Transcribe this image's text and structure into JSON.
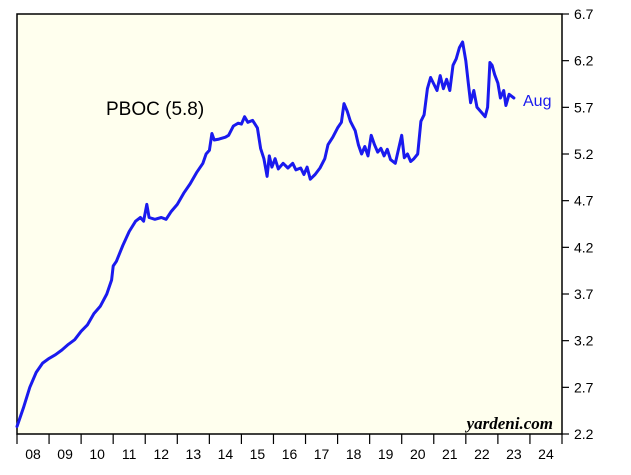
{
  "colors": {
    "plot_background": "#ffffee",
    "series": "#1a1aee",
    "axis": "#000000"
  },
  "chart_data": {
    "type": "line",
    "x_range": [
      2008,
      2025
    ],
    "ylim": [
      2.2,
      6.7
    ],
    "y_ticks": [
      "6.7",
      "6.2",
      "5.7",
      "5.2",
      "4.7",
      "4.2",
      "3.7",
      "3.2",
      "2.7",
      "2.2"
    ],
    "x_ticks": [
      "08",
      "09",
      "10",
      "11",
      "12",
      "13",
      "14",
      "15",
      "16",
      "17",
      "18",
      "19",
      "20",
      "21",
      "22",
      "23",
      "24"
    ],
    "grid": false,
    "annotation": "PBOC (5.8)",
    "end_label": "Aug",
    "source": "yardeni.com",
    "series": [
      {
        "points": [
          [
            2008.0,
            2.28
          ],
          [
            2008.2,
            2.48
          ],
          [
            2008.4,
            2.7
          ],
          [
            2008.6,
            2.86
          ],
          [
            2008.8,
            2.96
          ],
          [
            2009.0,
            3.01
          ],
          [
            2009.2,
            3.05
          ],
          [
            2009.4,
            3.1
          ],
          [
            2009.6,
            3.16
          ],
          [
            2009.8,
            3.21
          ],
          [
            2010.0,
            3.3
          ],
          [
            2010.2,
            3.37
          ],
          [
            2010.4,
            3.49
          ],
          [
            2010.6,
            3.57
          ],
          [
            2010.8,
            3.7
          ],
          [
            2010.95,
            3.85
          ],
          [
            2011.0,
            4.0
          ],
          [
            2011.1,
            4.05
          ],
          [
            2011.3,
            4.22
          ],
          [
            2011.5,
            4.37
          ],
          [
            2011.7,
            4.48
          ],
          [
            2011.85,
            4.52
          ],
          [
            2011.95,
            4.48
          ],
          [
            2012.05,
            4.66
          ],
          [
            2012.12,
            4.52
          ],
          [
            2012.3,
            4.5
          ],
          [
            2012.5,
            4.52
          ],
          [
            2012.65,
            4.5
          ],
          [
            2012.8,
            4.58
          ],
          [
            2013.0,
            4.66
          ],
          [
            2013.2,
            4.78
          ],
          [
            2013.4,
            4.88
          ],
          [
            2013.6,
            5.0
          ],
          [
            2013.8,
            5.1
          ],
          [
            2013.9,
            5.2
          ],
          [
            2014.0,
            5.24
          ],
          [
            2014.08,
            5.42
          ],
          [
            2014.15,
            5.35
          ],
          [
            2014.3,
            5.36
          ],
          [
            2014.5,
            5.38
          ],
          [
            2014.6,
            5.4
          ],
          [
            2014.75,
            5.5
          ],
          [
            2014.9,
            5.53
          ],
          [
            2015.0,
            5.52
          ],
          [
            2015.1,
            5.6
          ],
          [
            2015.2,
            5.54
          ],
          [
            2015.35,
            5.56
          ],
          [
            2015.5,
            5.48
          ],
          [
            2015.6,
            5.26
          ],
          [
            2015.7,
            5.15
          ],
          [
            2015.8,
            4.96
          ],
          [
            2015.87,
            5.18
          ],
          [
            2015.95,
            5.06
          ],
          [
            2016.05,
            5.15
          ],
          [
            2016.15,
            5.04
          ],
          [
            2016.3,
            5.1
          ],
          [
            2016.45,
            5.05
          ],
          [
            2016.6,
            5.1
          ],
          [
            2016.7,
            5.03
          ],
          [
            2016.85,
            5.05
          ],
          [
            2016.95,
            4.98
          ],
          [
            2017.05,
            5.06
          ],
          [
            2017.15,
            4.93
          ],
          [
            2017.3,
            4.98
          ],
          [
            2017.45,
            5.05
          ],
          [
            2017.6,
            5.15
          ],
          [
            2017.7,
            5.3
          ],
          [
            2017.85,
            5.38
          ],
          [
            2018.0,
            5.48
          ],
          [
            2018.12,
            5.54
          ],
          [
            2018.2,
            5.74
          ],
          [
            2018.3,
            5.66
          ],
          [
            2018.4,
            5.55
          ],
          [
            2018.55,
            5.45
          ],
          [
            2018.65,
            5.3
          ],
          [
            2018.75,
            5.2
          ],
          [
            2018.85,
            5.28
          ],
          [
            2018.95,
            5.18
          ],
          [
            2019.05,
            5.4
          ],
          [
            2019.15,
            5.3
          ],
          [
            2019.25,
            5.22
          ],
          [
            2019.35,
            5.26
          ],
          [
            2019.45,
            5.18
          ],
          [
            2019.55,
            5.25
          ],
          [
            2019.65,
            5.14
          ],
          [
            2019.8,
            5.1
          ],
          [
            2019.9,
            5.25
          ],
          [
            2020.0,
            5.4
          ],
          [
            2020.08,
            5.16
          ],
          [
            2020.18,
            5.2
          ],
          [
            2020.28,
            5.12
          ],
          [
            2020.38,
            5.15
          ],
          [
            2020.5,
            5.2
          ],
          [
            2020.6,
            5.55
          ],
          [
            2020.7,
            5.62
          ],
          [
            2020.8,
            5.9
          ],
          [
            2020.9,
            6.02
          ],
          [
            2021.0,
            5.95
          ],
          [
            2021.1,
            5.88
          ],
          [
            2021.2,
            6.04
          ],
          [
            2021.3,
            5.9
          ],
          [
            2021.4,
            6.0
          ],
          [
            2021.5,
            5.88
          ],
          [
            2021.6,
            6.15
          ],
          [
            2021.7,
            6.22
          ],
          [
            2021.8,
            6.34
          ],
          [
            2021.9,
            6.4
          ],
          [
            2022.0,
            6.2
          ],
          [
            2022.08,
            5.95
          ],
          [
            2022.15,
            5.75
          ],
          [
            2022.25,
            5.88
          ],
          [
            2022.35,
            5.7
          ],
          [
            2022.5,
            5.64
          ],
          [
            2022.6,
            5.6
          ],
          [
            2022.68,
            5.7
          ],
          [
            2022.75,
            6.18
          ],
          [
            2022.82,
            6.15
          ],
          [
            2022.9,
            6.05
          ],
          [
            2023.0,
            5.96
          ],
          [
            2023.08,
            5.8
          ],
          [
            2023.18,
            5.88
          ],
          [
            2023.25,
            5.72
          ],
          [
            2023.35,
            5.84
          ],
          [
            2023.5,
            5.8
          ]
        ]
      }
    ]
  }
}
